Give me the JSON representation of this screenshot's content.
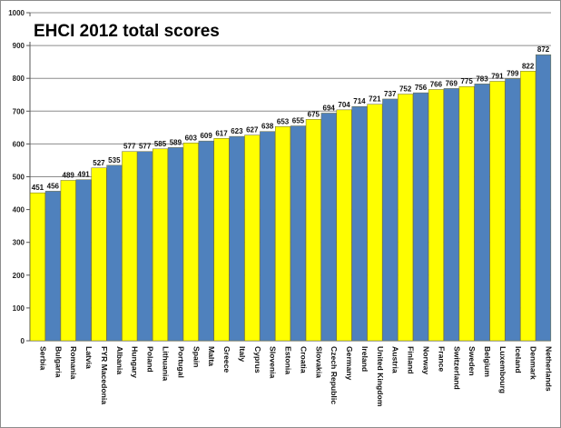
{
  "chart_data": {
    "type": "bar",
    "title": "EHCI 2012 total scores",
    "xlabel": "",
    "ylabel": "",
    "ylim": [
      0,
      1000
    ],
    "yticks": [
      0,
      100,
      200,
      300,
      400,
      500,
      600,
      700,
      800,
      900,
      1000
    ],
    "grid": true,
    "legend": "none",
    "colors": {
      "yellow": "#ffff00",
      "blue": "#4f81bd"
    },
    "categories": [
      "Serbia",
      "Bulgaria",
      "Romania",
      "Latvia",
      "FYR Macedonia",
      "Albania",
      "Hungary",
      "Poland",
      "Lithuania",
      "Portugal",
      "Spain",
      "Malta",
      "Greece",
      "Italy",
      "Cyprus",
      "Slovenia",
      "Estonia",
      "Croatia",
      "Slovakia",
      "Czech Republic",
      "Germany",
      "Ireland",
      "United Kingdom",
      "Austria",
      "Finland",
      "Norway",
      "France",
      "Switzerland",
      "Sweden",
      "Belgium",
      "Luxembourg",
      "Iceland",
      "Denmark",
      "Netherlands"
    ],
    "values": [
      451,
      456,
      489,
      491,
      527,
      535,
      577,
      577,
      585,
      589,
      603,
      609,
      617,
      623,
      627,
      638,
      653,
      655,
      675,
      694,
      704,
      714,
      721,
      737,
      752,
      756,
      766,
      769,
      775,
      783,
      791,
      799,
      822,
      872
    ],
    "bar_colors": [
      "yellow",
      "blue",
      "yellow",
      "blue",
      "yellow",
      "blue",
      "yellow",
      "blue",
      "yellow",
      "blue",
      "yellow",
      "blue",
      "yellow",
      "blue",
      "yellow",
      "blue",
      "yellow",
      "blue",
      "yellow",
      "blue",
      "yellow",
      "blue",
      "yellow",
      "blue",
      "yellow",
      "blue",
      "yellow",
      "blue",
      "yellow",
      "blue",
      "yellow",
      "blue",
      "yellow",
      "blue"
    ]
  }
}
